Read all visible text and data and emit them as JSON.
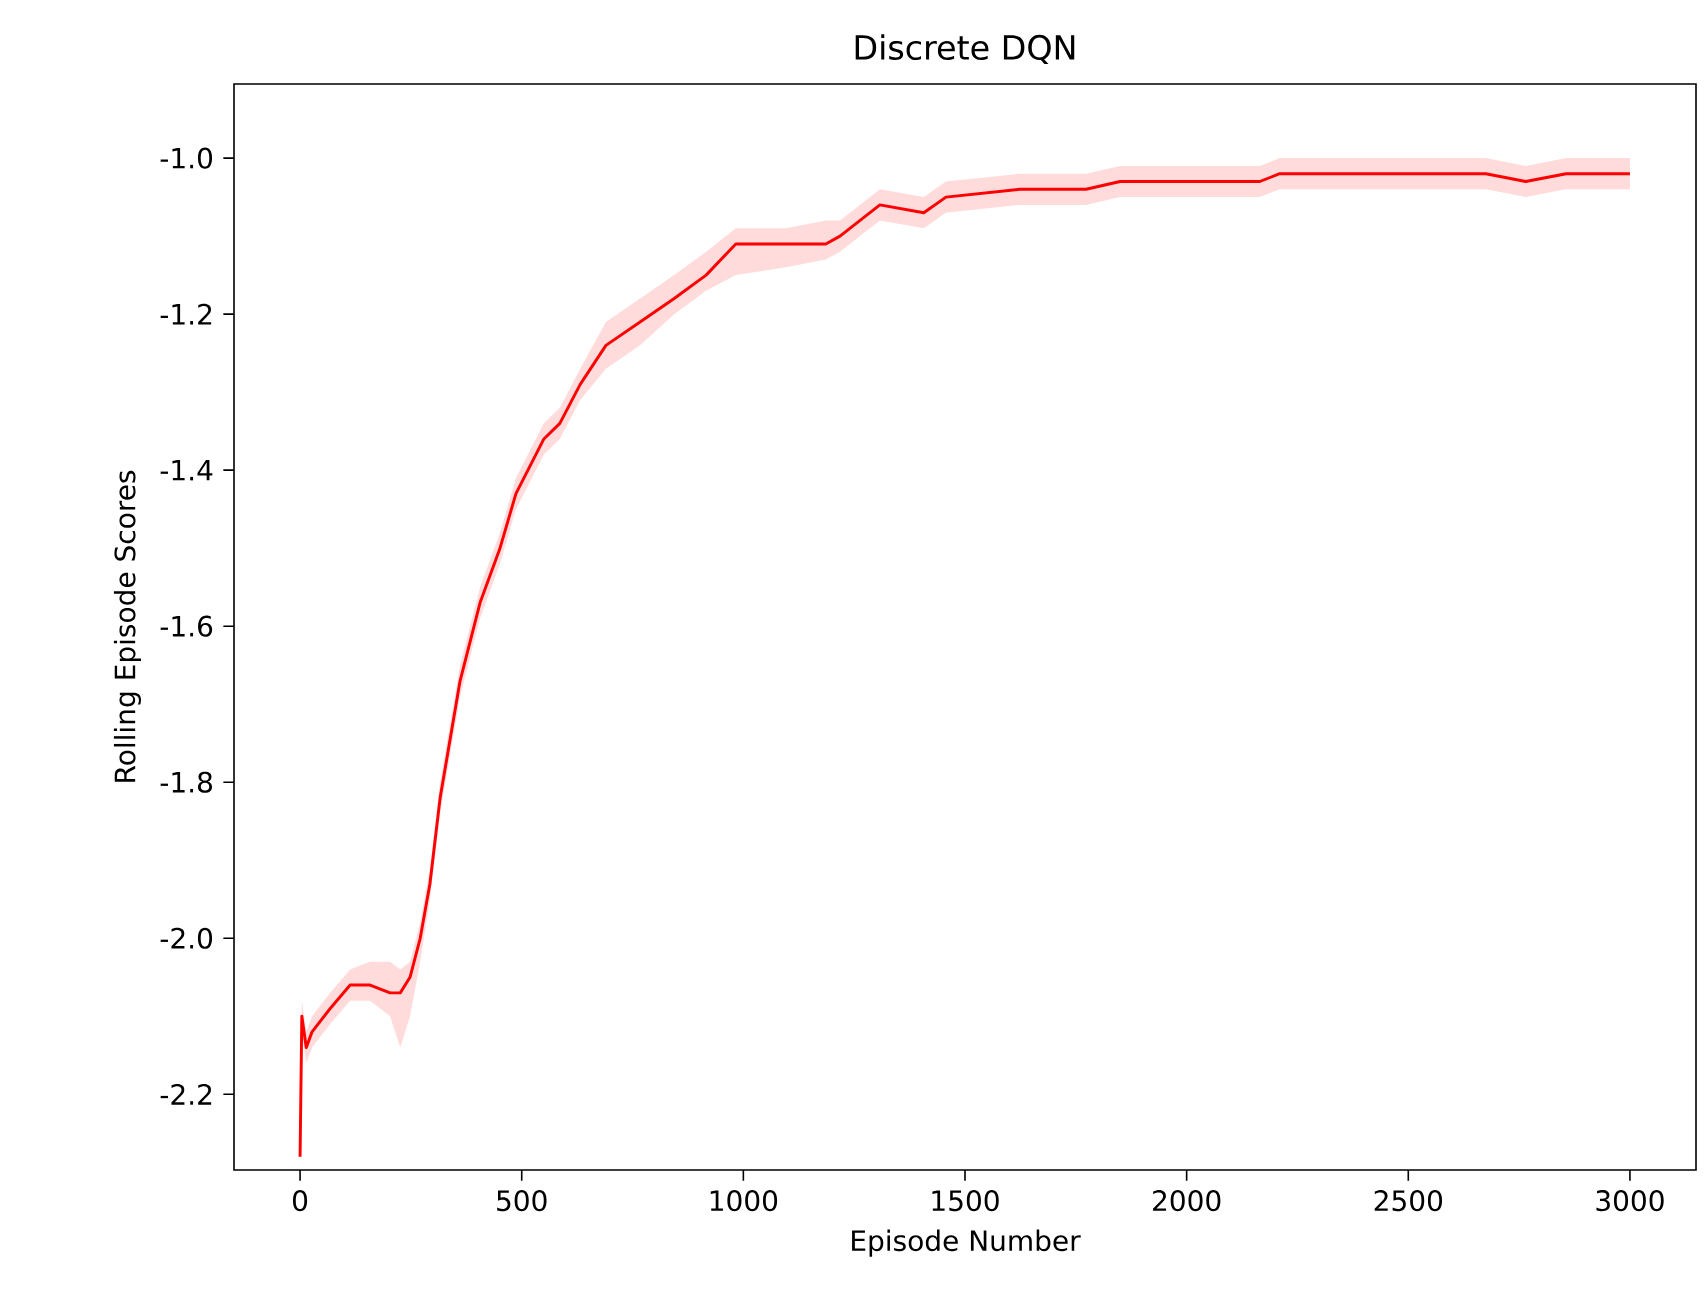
{
  "chart_data": {
    "type": "line",
    "title": "Discrete DQN",
    "xlabel": "Episode Number",
    "ylabel": "Rolling Episode Scores",
    "xlim": [
      -149,
      3149
    ],
    "ylim": [
      -2.297,
      -0.905
    ],
    "xticks": [
      0,
      500,
      1000,
      1500,
      2000,
      2500,
      3000
    ],
    "yticks": [
      {
        "value": -2.2,
        "label": "-2.2"
      },
      {
        "value": -2.0,
        "label": "-2.0"
      },
      {
        "value": -1.8,
        "label": "-1.8"
      },
      {
        "value": -1.6,
        "label": "-1.6"
      },
      {
        "value": -1.4,
        "label": "-1.4"
      },
      {
        "value": -1.2,
        "label": "-1.2"
      },
      {
        "value": -1.0,
        "label": "-1.0"
      }
    ],
    "grid": false,
    "marker": "none",
    "line_style": "solid",
    "x": [
      0,
      4,
      14,
      27,
      68,
      113,
      158,
      203,
      226,
      248,
      271,
      293,
      316,
      361,
      406,
      451,
      487,
      550,
      586,
      632,
      690,
      767,
      844,
      916,
      983,
      1096,
      1186,
      1218,
      1308,
      1407,
      1457,
      1624,
      1701,
      1773,
      1850,
      2030,
      2165,
      2210,
      2404,
      2630,
      2675,
      2765,
      2856,
      3000
    ],
    "series": [
      {
        "color": "#ff0000",
        "values": [
          -2.28,
          -2.1,
          -2.14,
          -2.12,
          -2.09,
          -2.06,
          -2.06,
          -2.07,
          -2.07,
          -2.05,
          -2.0,
          -1.93,
          -1.82,
          -1.67,
          -1.57,
          -1.5,
          -1.43,
          -1.36,
          -1.34,
          -1.29,
          -1.24,
          -1.21,
          -1.18,
          -1.15,
          -1.11,
          -1.11,
          -1.11,
          -1.1,
          -1.06,
          -1.07,
          -1.05,
          -1.04,
          -1.04,
          -1.04,
          -1.03,
          -1.03,
          -1.03,
          -1.02,
          -1.02,
          -1.02,
          -1.02,
          -1.03,
          -1.02,
          -1.02
        ],
        "lower": [
          -2.29,
          -2.12,
          -2.16,
          -2.14,
          -2.11,
          -2.08,
          -2.08,
          -2.1,
          -2.14,
          -2.1,
          -2.03,
          -1.95,
          -1.84,
          -1.69,
          -1.59,
          -1.52,
          -1.45,
          -1.38,
          -1.36,
          -1.31,
          -1.27,
          -1.24,
          -1.2,
          -1.17,
          -1.15,
          -1.14,
          -1.13,
          -1.12,
          -1.08,
          -1.09,
          -1.07,
          -1.06,
          -1.06,
          -1.06,
          -1.05,
          -1.05,
          -1.05,
          -1.04,
          -1.04,
          -1.04,
          -1.04,
          -1.05,
          -1.04,
          -1.04
        ],
        "upper": [
          -2.26,
          -2.08,
          -2.12,
          -2.1,
          -2.07,
          -2.04,
          -2.03,
          -2.03,
          -2.04,
          -2.03,
          -1.98,
          -1.91,
          -1.8,
          -1.65,
          -1.55,
          -1.48,
          -1.41,
          -1.34,
          -1.32,
          -1.27,
          -1.21,
          -1.18,
          -1.15,
          -1.12,
          -1.09,
          -1.09,
          -1.08,
          -1.08,
          -1.04,
          -1.05,
          -1.03,
          -1.02,
          -1.02,
          -1.02,
          -1.01,
          -1.01,
          -1.01,
          -1.0,
          -1.0,
          -1.0,
          -1.0,
          -1.01,
          -1.0,
          -1.0
        ]
      }
    ]
  }
}
